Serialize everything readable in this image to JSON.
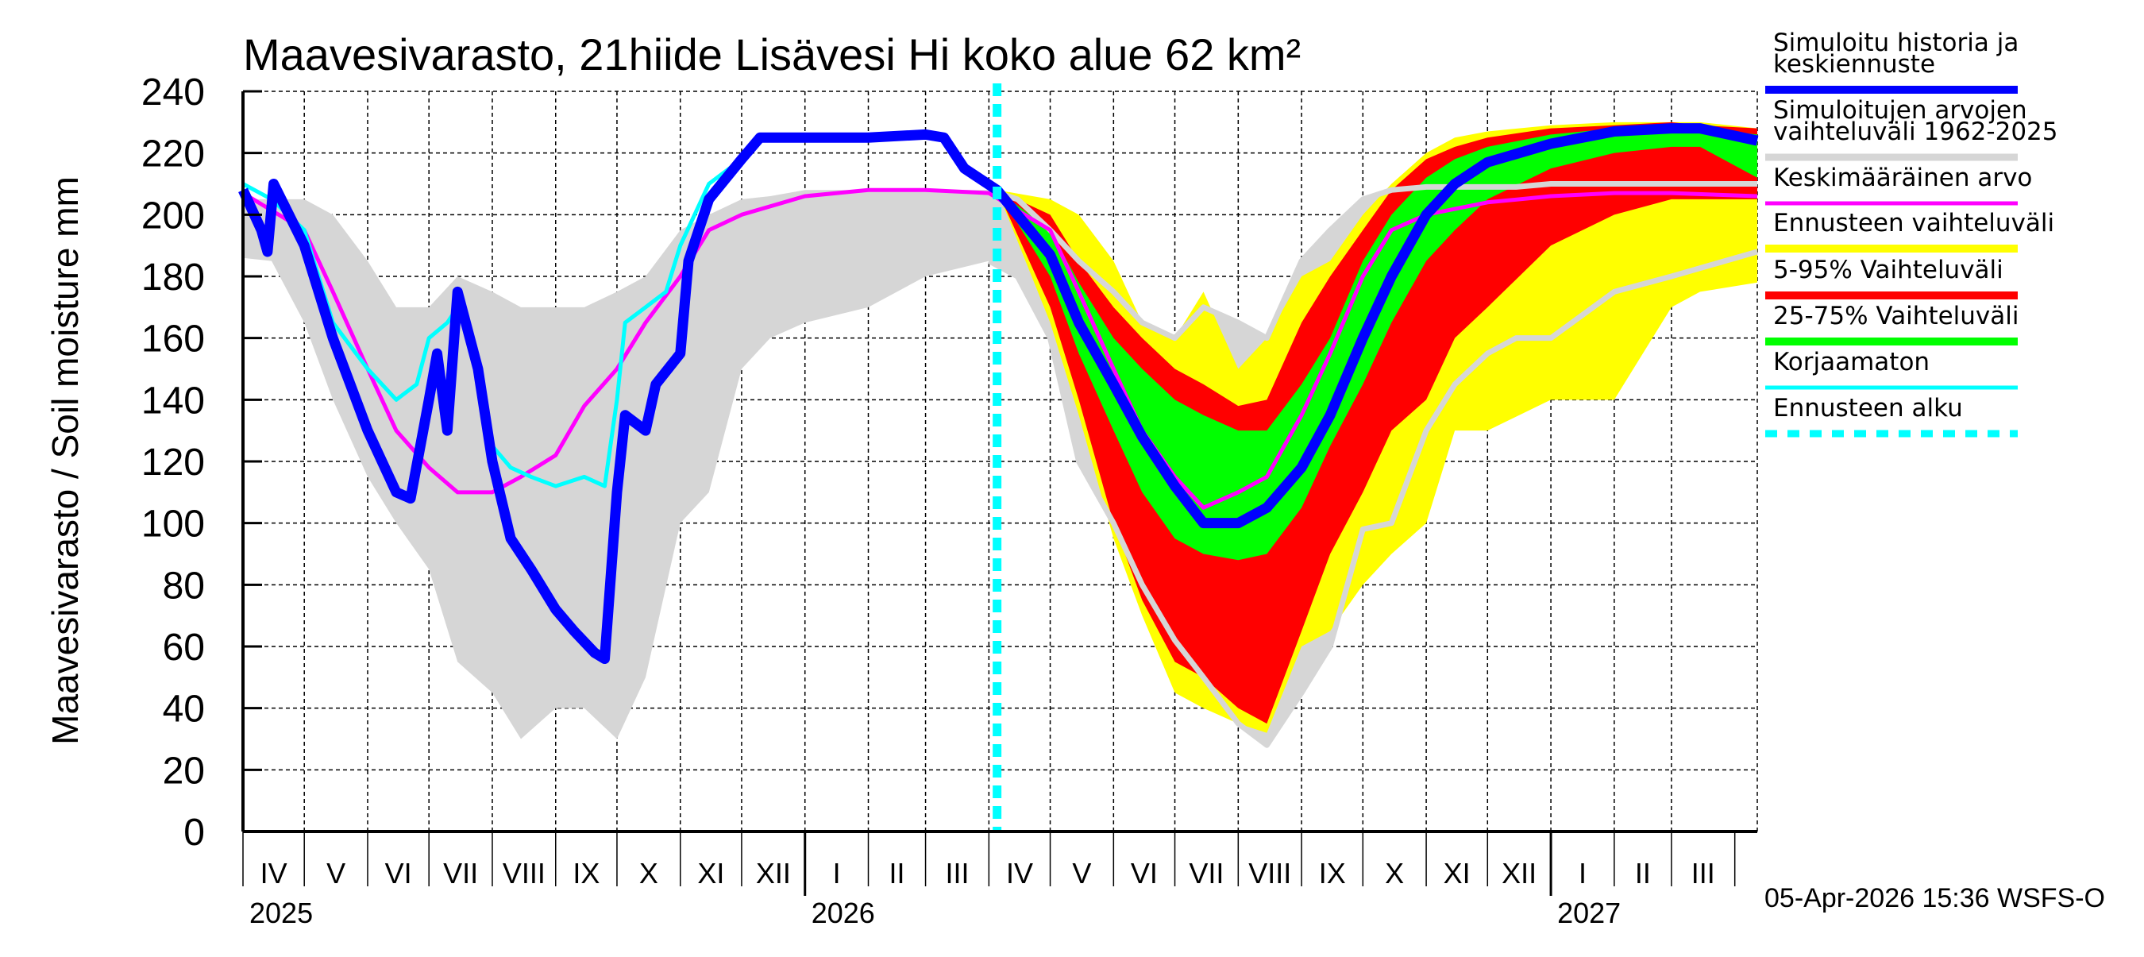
{
  "chart_data": {
    "type": "area",
    "title": "Maavesivarasto, 21hiide Lisävesi Hi koko alue 62 km²",
    "ylabel": "Maavesivarasto / Soil moisture   mm",
    "xlabel": "",
    "ylim": [
      0,
      240
    ],
    "xlim": [
      "2025-04-01",
      "2027-04-12"
    ],
    "yticks": [
      0,
      20,
      40,
      60,
      80,
      100,
      120,
      140,
      160,
      180,
      200,
      220,
      240
    ],
    "grid": true,
    "legend_position": "right",
    "month_labels": [
      "IV",
      "V",
      "VI",
      "VII",
      "VIII",
      "IX",
      "X",
      "XI",
      "XII",
      "I",
      "II",
      "III",
      "IV",
      "V",
      "VI",
      "VII",
      "VIII",
      "IX",
      "X",
      "XI",
      "XII",
      "I",
      "II",
      "III"
    ],
    "year_labels": [
      {
        "label": "2025",
        "date": "2025-04-01"
      },
      {
        "label": "2026",
        "date": "2026-01-01"
      },
      {
        "label": "2027",
        "date": "2027-01-01"
      }
    ],
    "forecast_start": "2026-04-05",
    "footer": "05-Apr-2026 15:36 WSFS-O",
    "colors": {
      "sim": "#0000ff",
      "hist_range": "#d6d6d6",
      "mean": "#ff00ff",
      "forecast_range": "#ffff00",
      "p5_95": "#ff0000",
      "p25_75": "#00ff00",
      "uncorrected": "#00ffff",
      "forecast_start": "#00ffff"
    },
    "legend": [
      {
        "key": "sim",
        "lines": [
          "Simuloitu historia ja",
          "keskiennuste"
        ]
      },
      {
        "key": "hist_range",
        "lines": [
          "Simuloitujen arvojen",
          "vaihteluväli 1962-2025"
        ]
      },
      {
        "key": "mean",
        "lines": [
          "Keskimääräinen arvo"
        ]
      },
      {
        "key": "forecast_range",
        "lines": [
          "Ennusteen vaihteluväli"
        ]
      },
      {
        "key": "p5_95",
        "lines": [
          "5-95% Vaihteluväli"
        ]
      },
      {
        "key": "p25_75",
        "lines": [
          "25-75% Vaihteluväli"
        ]
      },
      {
        "key": "uncorrected",
        "lines": [
          "Korjaamaton"
        ]
      },
      {
        "key": "forecast_start",
        "lines": [
          "Ennusteen alku"
        ]
      }
    ],
    "hist_range": {
      "dates": [
        "2025-04-01",
        "2025-04-15",
        "2025-05-01",
        "2025-05-15",
        "2025-06-01",
        "2025-06-15",
        "2025-07-01",
        "2025-07-15",
        "2025-08-01",
        "2025-08-15",
        "2025-09-01",
        "2025-09-15",
        "2025-10-01",
        "2025-10-15",
        "2025-11-01",
        "2025-11-15",
        "2025-12-01",
        "2025-12-15",
        "2026-01-01",
        "2026-02-01",
        "2026-03-01",
        "2026-04-01",
        "2026-04-15",
        "2026-05-01",
        "2026-05-15",
        "2026-06-01",
        "2026-06-15",
        "2026-07-01",
        "2026-07-15",
        "2026-08-01",
        "2026-08-15",
        "2026-09-01",
        "2026-09-15",
        "2026-10-01",
        "2026-10-15",
        "2026-11-01",
        "2026-11-15",
        "2026-12-01",
        "2026-12-15",
        "2027-01-01",
        "2027-02-01",
        "2027-03-01",
        "2027-04-12"
      ],
      "low": [
        186,
        185,
        165,
        140,
        115,
        100,
        85,
        55,
        45,
        30,
        40,
        40,
        30,
        50,
        100,
        110,
        150,
        160,
        165,
        170,
        180,
        185,
        180,
        160,
        120,
        100,
        80,
        62,
        50,
        35,
        28,
        45,
        60,
        98,
        100,
        130,
        145,
        155,
        160,
        160,
        175,
        180,
        188
      ],
      "high": [
        205,
        205,
        205,
        200,
        185,
        170,
        170,
        180,
        175,
        170,
        170,
        170,
        175,
        180,
        195,
        200,
        205,
        206,
        208,
        208,
        208,
        208,
        205,
        195,
        185,
        175,
        165,
        160,
        170,
        165,
        160,
        185,
        195,
        205,
        208,
        209,
        209,
        209,
        209,
        210,
        210,
        210,
        210
      ]
    },
    "forecast_bands": {
      "dates": [
        "2026-04-05",
        "2026-05-01",
        "2026-05-15",
        "2026-06-01",
        "2026-06-15",
        "2026-07-01",
        "2026-07-15",
        "2026-08-01",
        "2026-08-15",
        "2026-09-01",
        "2026-09-15",
        "2026-10-01",
        "2026-10-15",
        "2026-11-01",
        "2026-11-15",
        "2026-12-01",
        "2027-01-01",
        "2027-02-01",
        "2027-03-01",
        "2027-03-15",
        "2027-04-12"
      ],
      "min": [
        208,
        165,
        135,
        95,
        70,
        45,
        40,
        35,
        32,
        60,
        65,
        80,
        90,
        100,
        130,
        130,
        140,
        140,
        170,
        175,
        178
      ],
      "max": [
        208,
        205,
        200,
        185,
        165,
        160,
        175,
        150,
        160,
        180,
        185,
        200,
        210,
        220,
        225,
        227,
        229,
        230,
        230,
        230,
        228
      ],
      "p5": [
        208,
        170,
        140,
        100,
        75,
        55,
        50,
        40,
        35,
        65,
        90,
        110,
        130,
        140,
        160,
        170,
        190,
        200,
        205,
        205,
        205
      ],
      "p95": [
        208,
        200,
        185,
        170,
        160,
        150,
        145,
        138,
        140,
        165,
        180,
        195,
        208,
        218,
        222,
        225,
        228,
        229,
        230,
        229,
        228
      ],
      "p25": [
        208,
        180,
        155,
        130,
        110,
        95,
        90,
        88,
        90,
        105,
        125,
        145,
        165,
        185,
        195,
        205,
        215,
        220,
        222,
        222,
        212
      ],
      "p75": [
        208,
        195,
        178,
        160,
        150,
        140,
        135,
        130,
        130,
        145,
        160,
        185,
        200,
        212,
        218,
        222,
        226,
        228,
        229,
        228,
        226
      ]
    },
    "series": [
      {
        "key": "sim",
        "dates": [
          "2025-04-01",
          "2025-04-10",
          "2025-04-13",
          "2025-04-16",
          "2025-05-01",
          "2025-05-15",
          "2025-06-01",
          "2025-06-15",
          "2025-06-22",
          "2025-07-01",
          "2025-07-05",
          "2025-07-10",
          "2025-07-15",
          "2025-07-25",
          "2025-08-01",
          "2025-08-10",
          "2025-08-20",
          "2025-09-01",
          "2025-09-10",
          "2025-09-20",
          "2025-09-25",
          "2025-10-01",
          "2025-10-05",
          "2025-10-15",
          "2025-10-20",
          "2025-11-01",
          "2025-11-05",
          "2025-11-15",
          "2025-12-01",
          "2025-12-10",
          "2026-01-01",
          "2026-02-01",
          "2026-03-01",
          "2026-03-10",
          "2026-03-20",
          "2026-04-05",
          "2026-05-01",
          "2026-05-15",
          "2026-06-01",
          "2026-06-15",
          "2026-07-01",
          "2026-07-15",
          "2026-08-01",
          "2026-08-15",
          "2026-09-01",
          "2026-09-15",
          "2026-10-01",
          "2026-10-15",
          "2026-11-01",
          "2026-11-15",
          "2026-12-01",
          "2027-01-01",
          "2027-02-01",
          "2027-03-01",
          "2027-03-15",
          "2027-04-12"
        ],
        "values": [
          208,
          195,
          188,
          210,
          190,
          160,
          130,
          110,
          108,
          140,
          155,
          130,
          175,
          150,
          120,
          95,
          85,
          72,
          65,
          58,
          56,
          110,
          135,
          130,
          145,
          155,
          185,
          205,
          218,
          225,
          225,
          225,
          226,
          225,
          215,
          208,
          187,
          165,
          145,
          128,
          112,
          100,
          100,
          105,
          118,
          135,
          160,
          180,
          200,
          210,
          217,
          223,
          227,
          228,
          228,
          224
        ]
      },
      {
        "key": "uncorrected",
        "dates": [
          "2025-04-01",
          "2025-04-15",
          "2025-05-01",
          "2025-05-15",
          "2025-06-01",
          "2025-06-15",
          "2025-06-25",
          "2025-07-01",
          "2025-07-10",
          "2025-07-15",
          "2025-07-25",
          "2025-08-01",
          "2025-08-10",
          "2025-08-20",
          "2025-09-01",
          "2025-09-15",
          "2025-09-25",
          "2025-10-01",
          "2025-10-05",
          "2025-10-15",
          "2025-10-25",
          "2025-11-01",
          "2025-11-15",
          "2025-12-01",
          "2025-12-10",
          "2026-01-01",
          "2026-02-01",
          "2026-03-01",
          "2026-03-10",
          "2026-03-20",
          "2026-04-05"
        ],
        "values": [
          210,
          205,
          195,
          165,
          150,
          140,
          145,
          160,
          165,
          170,
          150,
          125,
          118,
          115,
          112,
          115,
          112,
          140,
          165,
          170,
          175,
          190,
          210,
          218,
          225,
          225,
          225,
          226,
          225,
          215,
          208
        ]
      },
      {
        "key": "mean",
        "dates": [
          "2025-04-01",
          "2025-05-01",
          "2025-05-15",
          "2025-06-01",
          "2025-06-15",
          "2025-07-01",
          "2025-07-15",
          "2025-08-01",
          "2025-08-15",
          "2025-09-01",
          "2025-09-15",
          "2025-10-01",
          "2025-10-15",
          "2025-11-01",
          "2025-11-15",
          "2025-12-01",
          "2026-01-01",
          "2026-02-01",
          "2026-03-01",
          "2026-04-01",
          "2026-05-01",
          "2026-05-15",
          "2026-06-01",
          "2026-06-15",
          "2026-07-01",
          "2026-07-15",
          "2026-08-01",
          "2026-08-15",
          "2026-09-01",
          "2026-09-15",
          "2026-10-01",
          "2026-10-15",
          "2026-11-01",
          "2026-12-01",
          "2027-01-01",
          "2027-02-01",
          "2027-03-01",
          "2027-04-12"
        ],
        "values": [
          207,
          195,
          175,
          150,
          130,
          118,
          110,
          110,
          115,
          122,
          138,
          150,
          165,
          180,
          195,
          200,
          206,
          208,
          208,
          207,
          195,
          175,
          150,
          130,
          115,
          105,
          110,
          115,
          135,
          155,
          180,
          195,
          200,
          204,
          206,
          207,
          207,
          206
        ]
      }
    ]
  }
}
